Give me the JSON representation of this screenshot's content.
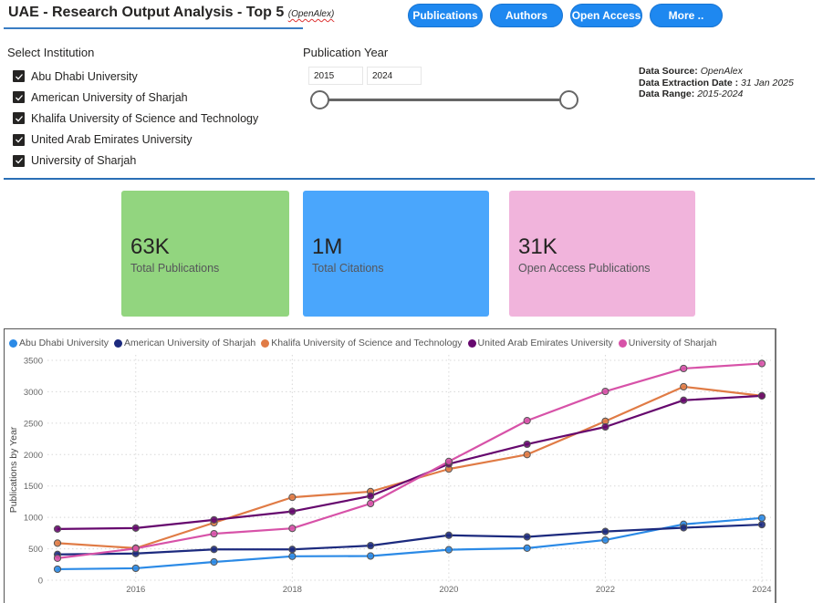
{
  "header": {
    "title": "UAE - Research Output Analysis - Top 5",
    "subtitle": "(OpenAlex)"
  },
  "nav": {
    "buttons": [
      {
        "label": "Publications"
      },
      {
        "label": "Authors"
      },
      {
        "label": "Open Access"
      },
      {
        "label": "More .."
      }
    ],
    "color": "#1e88f0"
  },
  "filters": {
    "institution_label": "Select Institution",
    "institutions": [
      {
        "label": "Abu Dhabi University",
        "checked": true
      },
      {
        "label": "American University of Sharjah",
        "checked": true
      },
      {
        "label": "Khalifa University of Science and Technology",
        "checked": true
      },
      {
        "label": "United Arab Emirates University",
        "checked": true
      },
      {
        "label": "University of Sharjah",
        "checked": true
      }
    ],
    "year_label": "Publication Year",
    "year_from": "2015",
    "year_to": "2024",
    "slider_min": 2015,
    "slider_max": 2024
  },
  "info": {
    "source_label": "Data Source:",
    "source_value": "OpenAlex",
    "extraction_label": "Data Extraction Date :",
    "extraction_value": "31 Jan 2025",
    "range_label": "Data Range:",
    "range_value": "2015-2024"
  },
  "kpis": [
    {
      "value": "63K",
      "label": "Total Publications",
      "color": "#92d57f"
    },
    {
      "value": "1M",
      "label": "Total Citations",
      "color": "#4aa6fc"
    },
    {
      "value": "31K",
      "label": "Open Access Publications",
      "color": "#f1b4dc"
    }
  ],
  "chart_data": {
    "type": "line",
    "title": "",
    "xlabel": "",
    "ylabel": "Publications by Year",
    "x": [
      2015,
      2016,
      2017,
      2018,
      2019,
      2020,
      2021,
      2022,
      2023,
      2024
    ],
    "xticks": [
      "2016",
      "2018",
      "2020",
      "2022",
      "2024"
    ],
    "xtick_values": [
      2016,
      2018,
      2020,
      2022,
      2024
    ],
    "yticks": [
      "0",
      "500",
      "1000",
      "1500",
      "2000",
      "2500",
      "3000",
      "3500"
    ],
    "ylim": [
      0,
      3500
    ],
    "grid": true,
    "legend": "top-left",
    "series": [
      {
        "name": "Abu Dhabi University",
        "color": "#2b8ae6",
        "values": [
          175,
          190,
          290,
          380,
          385,
          485,
          510,
          640,
          890,
          990
        ]
      },
      {
        "name": "American University of Sharjah",
        "color": "#1c2a7e",
        "values": [
          410,
          425,
          490,
          490,
          550,
          715,
          690,
          775,
          835,
          885
        ]
      },
      {
        "name": "Khalifa University of Science and Technology",
        "color": "#e07b45",
        "values": [
          590,
          510,
          915,
          1320,
          1410,
          1770,
          2000,
          2530,
          3080,
          2935
        ]
      },
      {
        "name": "United Arab Emirates University",
        "color": "#66086e",
        "values": [
          815,
          830,
          960,
          1095,
          1340,
          1850,
          2165,
          2440,
          2865,
          2935
        ]
      },
      {
        "name": "University of Sharjah",
        "color": "#d752a8",
        "values": [
          350,
          505,
          740,
          825,
          1220,
          1890,
          2540,
          3005,
          3370,
          3450
        ]
      }
    ]
  }
}
